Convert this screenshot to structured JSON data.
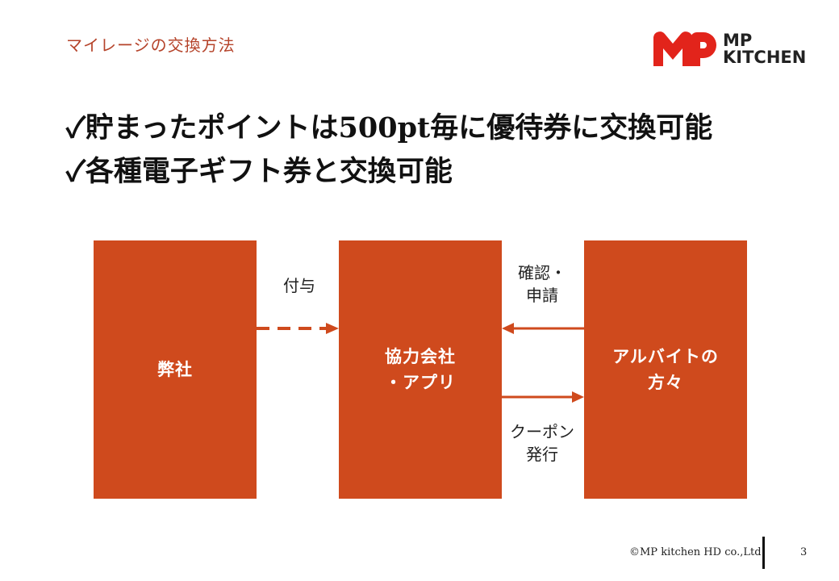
{
  "header": {
    "section_title": "マイレージの交換方法"
  },
  "logo": {
    "line1": "MP",
    "line2": "KITCHEN",
    "colors": {
      "mark": "#e2241b",
      "text": "#222222"
    }
  },
  "bullets": [
    {
      "mark": "✓",
      "text": "貯まったポイントは500pt毎に優待券に交換可能"
    },
    {
      "mark": "✓",
      "text": "各種電子ギフト券と交換可能"
    }
  ],
  "diagram": {
    "boxes": [
      {
        "lines": [
          "弊社"
        ]
      },
      {
        "lines": [
          "協力会社",
          "・アプリ"
        ]
      },
      {
        "lines": [
          "アルバイトの",
          "方々"
        ]
      }
    ],
    "labels": {
      "grant": [
        "付与"
      ],
      "confirm": [
        "確認・",
        "申請"
      ],
      "coupon": [
        "クーポン",
        "発行"
      ]
    },
    "colors": {
      "box": "#cf4a1d",
      "arrow": "#cf4a1d"
    }
  },
  "footer": {
    "copyright": "©MP kitchen HD co.,Ltd",
    "page_number": "3"
  }
}
